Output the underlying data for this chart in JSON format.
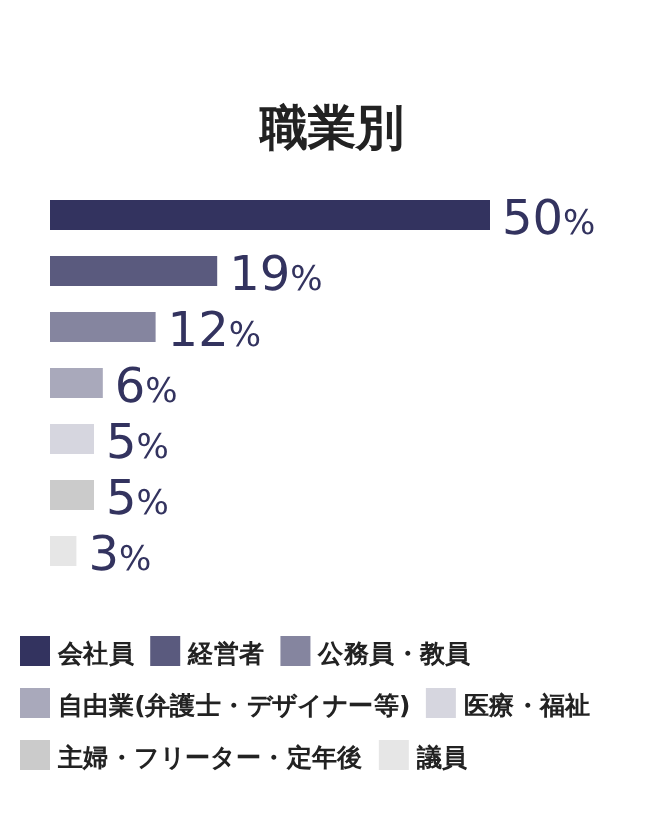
{
  "chart_data": {
    "type": "bar",
    "orientation": "horizontal",
    "title": "職業別",
    "categories": [
      null,
      null,
      null,
      null,
      null,
      null,
      null
    ],
    "series": [
      {
        "name": "会社員",
        "color": "#33335f",
        "values": [
          50,
          null,
          null,
          null,
          null,
          null,
          null
        ],
        "value_labels": [
          "50%",
          null,
          null,
          null,
          null,
          null,
          null
        ]
      },
      {
        "name": "経営者",
        "color": "#5a5a7e",
        "values": [
          null,
          19,
          null,
          null,
          null,
          null,
          null
        ],
        "value_labels": [
          null,
          "19%",
          null,
          null,
          null,
          null,
          null
        ]
      },
      {
        "name": "公務員・教員",
        "color": "#85859f",
        "values": [
          null,
          null,
          12,
          null,
          null,
          null,
          null
        ],
        "value_labels": [
          null,
          null,
          "12%",
          null,
          null,
          null,
          null
        ]
      },
      {
        "name": "自由業(弁護士・デザイナー等)",
        "color": "#a9a9bb",
        "values": [
          null,
          null,
          null,
          6,
          null,
          null,
          null
        ],
        "value_labels": [
          null,
          null,
          null,
          "6%",
          null,
          null,
          null
        ]
      },
      {
        "name": "医療・福祉",
        "color": "#d6d6df",
        "values": [
          null,
          null,
          null,
          null,
          5,
          null,
          null
        ],
        "value_labels": [
          null,
          null,
          null,
          null,
          "5%",
          null,
          null
        ]
      },
      {
        "name": "主婦・フリーター・定年後",
        "color": "#cbcbcb",
        "values": [
          null,
          null,
          null,
          null,
          null,
          5,
          null
        ],
        "value_labels": [
          null,
          null,
          null,
          null,
          null,
          "5%",
          null
        ]
      },
      {
        "name": "議員",
        "color": "#e6e6e6",
        "values": [
          null,
          null,
          null,
          null,
          null,
          null,
          3
        ],
        "value_labels": [
          null,
          null,
          null,
          null,
          null,
          null,
          "3%"
        ]
      }
    ],
    "stacked": true,
    "legend": "bottom"
  }
}
